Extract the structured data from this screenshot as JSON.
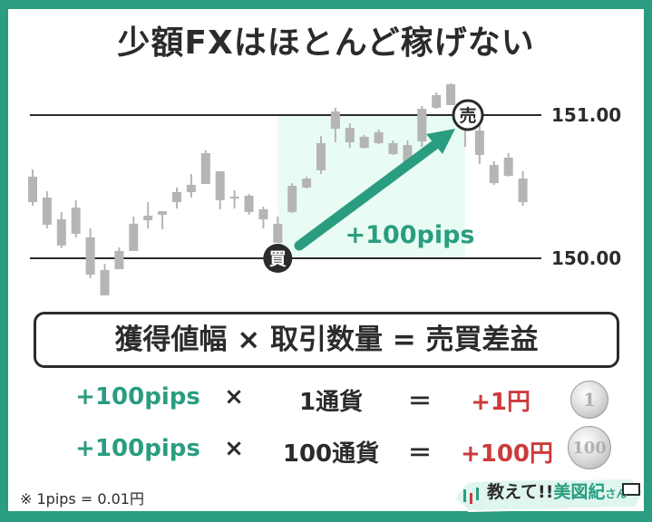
{
  "title": "少額FXはほとんど稼げない",
  "chart_data": {
    "type": "candlestick",
    "price_levels": [
      151.0,
      150.0
    ],
    "price_level_labels": [
      "151.00",
      "150.00"
    ],
    "candles_high_low_bodytop_bodybottom": [
      [
        150.62,
        150.367,
        150.57,
        150.392
      ],
      [
        150.468,
        150.209,
        150.424,
        150.234
      ],
      [
        150.323,
        150.07,
        150.272,
        150.089
      ],
      [
        150.405,
        150.146,
        150.354,
        150.171
      ],
      [
        150.209,
        149.861,
        150.146,
        149.886
      ],
      [
        149.962,
        149.741,
        149.918,
        149.741
      ],
      [
        150.076,
        149.924,
        150.051,
        149.924
      ],
      [
        150.291,
        150.051,
        150.241,
        150.051
      ],
      [
        150.392,
        150.209,
        150.297,
        150.266
      ],
      [
        150.329,
        150.203,
        150.329,
        150.304
      ],
      [
        150.494,
        150.348,
        150.462,
        150.392
      ],
      [
        150.589,
        150.424,
        150.513,
        150.462
      ],
      [
        150.753,
        150.519,
        150.734,
        150.519
      ],
      [
        150.608,
        150.342,
        150.608,
        150.405
      ],
      [
        150.475,
        150.348,
        150.43,
        150.418
      ],
      [
        150.449,
        150.304,
        150.437,
        150.323
      ],
      [
        150.361,
        150.209,
        150.342,
        150.272
      ],
      [
        150.291,
        150.108,
        150.241,
        150.108
      ],
      [
        150.525,
        150.316,
        150.506,
        150.323
      ],
      [
        150.57,
        150.487,
        150.557,
        150.494
      ],
      [
        150.854,
        150.589,
        150.804,
        150.614
      ],
      [
        151.051,
        150.81,
        151.025,
        150.905
      ],
      [
        150.943,
        150.772,
        150.911,
        150.81
      ],
      [
        150.861,
        150.766,
        150.848,
        150.772
      ],
      [
        150.899,
        150.797,
        150.88,
        150.804
      ],
      [
        150.823,
        150.722,
        150.804,
        150.728
      ],
      [
        150.823,
        150.639,
        150.791,
        150.652
      ],
      [
        151.063,
        150.778,
        151.044,
        150.816
      ],
      [
        151.158,
        151.044,
        151.139,
        151.051
      ],
      [
        151.222,
        151.07,
        151.215,
        151.07
      ],
      [
        151.057,
        150.778,
        151.057,
        150.968
      ],
      [
        150.937,
        150.658,
        150.892,
        150.722
      ],
      [
        150.677,
        150.513,
        150.652,
        150.525
      ],
      [
        150.734,
        150.57,
        150.703,
        150.576
      ],
      [
        150.608,
        150.367,
        150.557,
        150.392
      ]
    ],
    "buy_marker": {
      "label": "買",
      "price": 150.0,
      "candle_index": 17
    },
    "sell_marker": {
      "label": "売",
      "price": 151.0,
      "candle_index": 30
    },
    "gain_label": "+100pips",
    "candle_color": "#b5b5b5",
    "highlight_color": "#e9fcf3",
    "arrow_color": "#2a9d80"
  },
  "formula": "獲得値幅 × 取引数量 = 売買差益",
  "rows": [
    {
      "pips": "+100pips",
      "times": "×",
      "quantity": "1通貨",
      "equals": "＝",
      "profit": "+1円",
      "coin": "1"
    },
    {
      "pips": "+100pips",
      "times": "×",
      "quantity": "100通貨",
      "equals": "＝",
      "profit": "+100円",
      "coin": "100"
    }
  ],
  "note": "※ 1pips = 0.01円",
  "logo": {
    "text_prefix": "教えて!!",
    "text_name": "美図紀",
    "text_suffix": "さん"
  },
  "colors": {
    "frame": "#2a9d80",
    "green": "#2a9d80",
    "red": "#cc3b3b",
    "text": "#2b2b2b"
  }
}
